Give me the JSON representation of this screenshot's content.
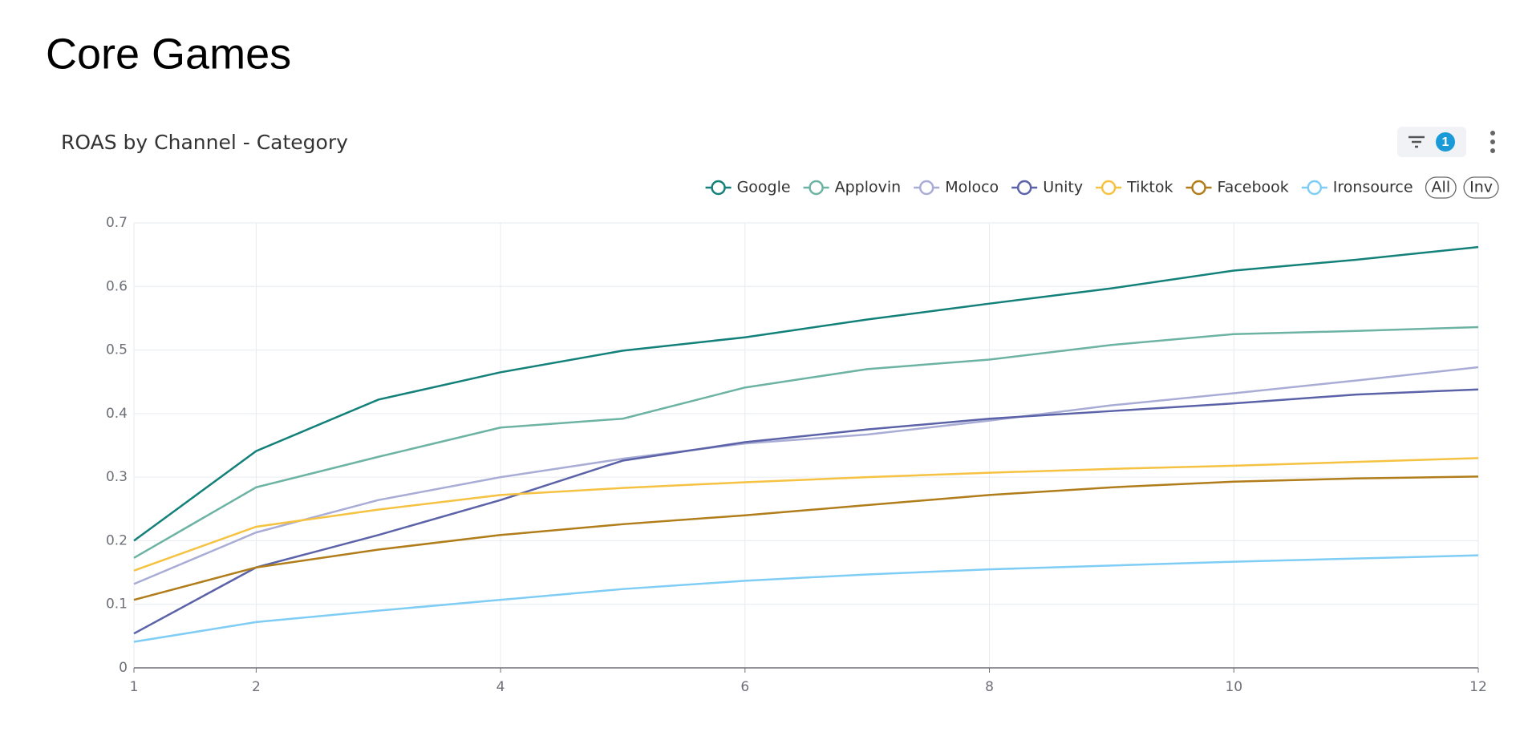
{
  "header": {
    "title": "Core Games"
  },
  "toolbar": {
    "filter_badge": "1",
    "legend_all": "All",
    "legend_inverse": "Inv"
  },
  "chart_data": {
    "type": "line",
    "title": "ROAS by Channel - Category",
    "x": [
      1,
      2,
      3,
      4,
      5,
      6,
      7,
      8,
      9,
      10,
      11,
      12
    ],
    "xlim": [
      1,
      12
    ],
    "xticks": [
      1,
      2,
      4,
      6,
      8,
      10,
      12
    ],
    "ylim": [
      0,
      0.7
    ],
    "yticks": [
      0,
      0.1,
      0.2,
      0.3,
      0.4,
      0.5,
      0.6,
      0.7
    ],
    "grid": true,
    "legend": "top-right",
    "series": [
      {
        "name": "Google",
        "color": "#13807a",
        "values": [
          0.2,
          0.341,
          0.422,
          0.465,
          0.499,
          0.52,
          0.548,
          0.573,
          0.597,
          0.625,
          0.642,
          0.662
        ]
      },
      {
        "name": "Applovin",
        "color": "#6cb3a3",
        "values": [
          0.173,
          0.284,
          0.332,
          0.378,
          0.392,
          0.441,
          0.47,
          0.485,
          0.508,
          0.525,
          0.53,
          0.536
        ]
      },
      {
        "name": "Moloco",
        "color": "#a9add6",
        "values": [
          0.132,
          0.213,
          0.264,
          0.3,
          0.329,
          0.353,
          0.367,
          0.389,
          0.413,
          0.432,
          0.452,
          0.473
        ]
      },
      {
        "name": "Unity",
        "color": "#5b62a8",
        "values": [
          0.054,
          0.158,
          0.209,
          0.264,
          0.326,
          0.355,
          0.375,
          0.392,
          0.404,
          0.416,
          0.43,
          0.438
        ]
      },
      {
        "name": "Tiktok",
        "color": "#f5c242",
        "values": [
          0.153,
          0.222,
          0.249,
          0.272,
          0.283,
          0.292,
          0.3,
          0.307,
          0.313,
          0.318,
          0.324,
          0.33
        ]
      },
      {
        "name": "Facebook",
        "color": "#b07d1a",
        "values": [
          0.107,
          0.158,
          0.186,
          0.209,
          0.226,
          0.24,
          0.256,
          0.272,
          0.284,
          0.293,
          0.298,
          0.301
        ]
      },
      {
        "name": "Ironsource",
        "color": "#7fcdf5",
        "values": [
          0.041,
          0.072,
          0.09,
          0.107,
          0.124,
          0.137,
          0.147,
          0.155,
          0.161,
          0.167,
          0.172,
          0.177
        ]
      }
    ]
  }
}
